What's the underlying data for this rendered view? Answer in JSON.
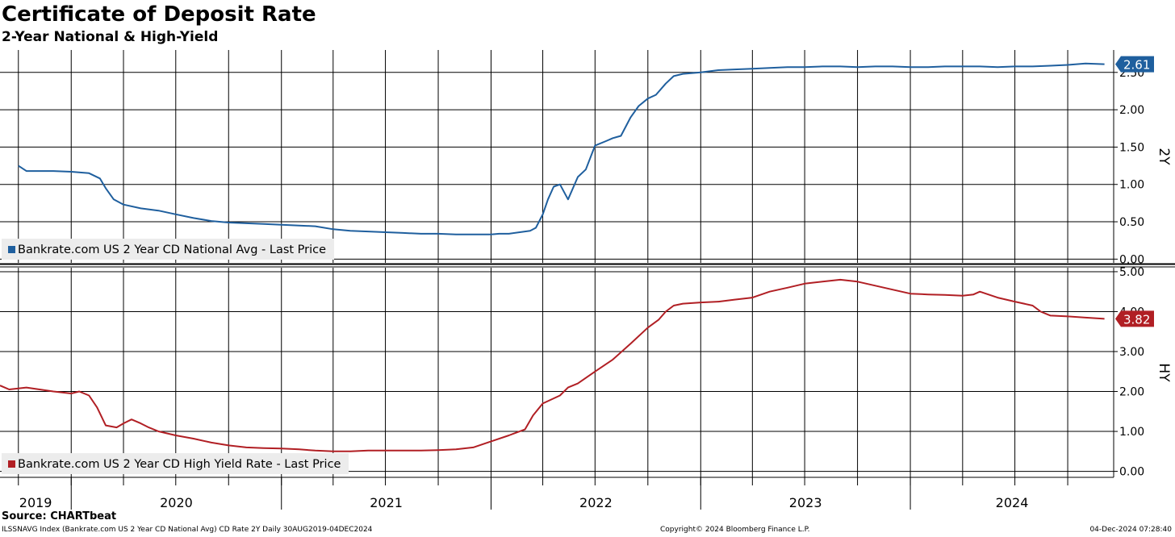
{
  "header": {
    "title": "Certificate of Deposit Rate",
    "subtitle": "2-Year National & High-Yield"
  },
  "footer": {
    "source": "Source: CHARTbeat",
    "index_line": "ILSSNAVG Index (Bankrate.com US 2 Year CD National Avg) CD Rate 2Y  Daily 30AUG2019-04DEC2024",
    "copyright": "Copyright© 2024 Bloomberg Finance L.P.",
    "timestamp": "04-Dec-2024 07:28:40"
  },
  "colors": {
    "national": "#1f5f9e",
    "high_yield": "#b11f24",
    "grid": "#000000"
  },
  "chart_data": [
    {
      "type": "line",
      "panel_label": "2Y",
      "legend": "Bankrate.com US 2 Year CD National Avg - Last Price",
      "legend_position": "bottom-left",
      "last_value_label": "2.61",
      "last_value": 2.61,
      "ylim": [
        -0.05,
        2.8
      ],
      "yticks": [
        0.0,
        0.5,
        1.0,
        1.5,
        2.0,
        2.5
      ],
      "ytick_labels": [
        "0.00",
        "0.50",
        "1.00",
        "1.50",
        "2.00",
        "2.50"
      ],
      "grid": true,
      "series": [
        {
          "color": "#1f5f9e",
          "x": [
            "2019-10-01",
            "2019-10-15",
            "2019-12-01",
            "2020-01-01",
            "2020-02-01",
            "2020-02-20",
            "2020-03-01",
            "2020-03-15",
            "2020-04-01",
            "2020-05-01",
            "2020-06-01",
            "2020-07-01",
            "2020-08-01",
            "2020-09-01",
            "2020-10-01",
            "2020-11-01",
            "2020-12-01",
            "2021-01-01",
            "2021-02-01",
            "2021-03-01",
            "2021-04-01",
            "2021-05-01",
            "2021-06-01",
            "2021-07-01",
            "2021-08-01",
            "2021-09-01",
            "2021-10-01",
            "2021-11-01",
            "2021-12-01",
            "2022-01-01",
            "2022-01-15",
            "2022-02-01",
            "2022-02-20",
            "2022-03-01",
            "2022-03-10",
            "2022-03-20",
            "2022-04-01",
            "2022-04-10",
            "2022-04-20",
            "2022-05-01",
            "2022-05-15",
            "2022-06-01",
            "2022-06-15",
            "2022-07-01",
            "2022-07-20",
            "2022-08-01",
            "2022-08-15",
            "2022-09-01",
            "2022-09-15",
            "2022-10-01",
            "2022-10-15",
            "2022-11-01",
            "2022-11-15",
            "2022-12-01",
            "2023-01-01",
            "2023-02-01",
            "2023-03-01",
            "2023-04-01",
            "2023-05-01",
            "2023-06-01",
            "2023-07-01",
            "2023-08-01",
            "2023-09-01",
            "2023-10-01",
            "2023-11-01",
            "2023-12-01",
            "2024-01-01",
            "2024-02-01",
            "2024-03-01",
            "2024-04-01",
            "2024-05-01",
            "2024-06-01",
            "2024-07-01",
            "2024-08-01",
            "2024-09-01",
            "2024-10-01",
            "2024-11-01",
            "2024-12-04"
          ],
          "y": [
            1.25,
            1.18,
            1.18,
            1.17,
            1.15,
            1.08,
            0.95,
            0.8,
            0.73,
            0.68,
            0.65,
            0.6,
            0.55,
            0.51,
            0.49,
            0.48,
            0.47,
            0.46,
            0.45,
            0.44,
            0.4,
            0.38,
            0.37,
            0.36,
            0.35,
            0.34,
            0.34,
            0.33,
            0.33,
            0.33,
            0.34,
            0.34,
            0.36,
            0.37,
            0.38,
            0.42,
            0.6,
            0.8,
            0.97,
            1.0,
            0.8,
            1.1,
            1.2,
            1.52,
            1.58,
            1.62,
            1.65,
            1.9,
            2.05,
            2.15,
            2.2,
            2.35,
            2.45,
            2.48,
            2.5,
            2.53,
            2.54,
            2.55,
            2.56,
            2.57,
            2.57,
            2.58,
            2.58,
            2.57,
            2.58,
            2.58,
            2.57,
            2.57,
            2.58,
            2.58,
            2.58,
            2.57,
            2.58,
            2.58,
            2.59,
            2.6,
            2.62,
            2.61
          ]
        }
      ]
    },
    {
      "type": "line",
      "panel_label": "HY",
      "legend": "Bankrate.com US 2 Year CD High Yield Rate - Last Price",
      "legend_position": "bottom-left",
      "last_value_label": "3.82",
      "last_value": 3.82,
      "ylim": [
        -0.15,
        5.1
      ],
      "yticks": [
        0.0,
        1.0,
        2.0,
        3.0,
        4.0,
        5.0
      ],
      "ytick_labels": [
        "0.00",
        "1.00",
        "2.00",
        "3.00",
        "4.00",
        "5.00"
      ],
      "grid": true,
      "series": [
        {
          "color": "#b11f24",
          "x": [
            "2019-08-30",
            "2019-09-15",
            "2019-10-15",
            "2019-12-01",
            "2020-01-01",
            "2020-01-15",
            "2020-02-01",
            "2020-02-15",
            "2020-03-01",
            "2020-03-20",
            "2020-04-01",
            "2020-04-15",
            "2020-05-01",
            "2020-05-15",
            "2020-06-01",
            "2020-07-01",
            "2020-08-01",
            "2020-09-01",
            "2020-10-01",
            "2020-11-01",
            "2020-12-01",
            "2021-01-01",
            "2021-02-01",
            "2021-03-01",
            "2021-04-01",
            "2021-05-01",
            "2021-06-01",
            "2021-07-01",
            "2021-08-01",
            "2021-09-01",
            "2021-10-01",
            "2021-11-01",
            "2021-12-01",
            "2022-01-01",
            "2022-02-01",
            "2022-03-01",
            "2022-03-15",
            "2022-04-01",
            "2022-05-01",
            "2022-05-15",
            "2022-06-01",
            "2022-07-01",
            "2022-08-01",
            "2022-09-01",
            "2022-10-01",
            "2022-10-20",
            "2022-11-01",
            "2022-11-15",
            "2022-12-01",
            "2023-01-01",
            "2023-02-01",
            "2023-03-01",
            "2023-04-01",
            "2023-05-01",
            "2023-06-01",
            "2023-07-01",
            "2023-08-01",
            "2023-09-01",
            "2023-10-01",
            "2023-11-01",
            "2023-12-01",
            "2024-01-01",
            "2024-02-01",
            "2024-03-01",
            "2024-04-01",
            "2024-04-20",
            "2024-05-01",
            "2024-06-01",
            "2024-07-01",
            "2024-08-01",
            "2024-08-15",
            "2024-09-01",
            "2024-10-01",
            "2024-11-01",
            "2024-12-04"
          ],
          "y": [
            2.15,
            2.05,
            2.1,
            2.0,
            1.95,
            2.0,
            1.9,
            1.6,
            1.15,
            1.1,
            1.2,
            1.3,
            1.2,
            1.1,
            1.0,
            0.9,
            0.82,
            0.72,
            0.65,
            0.6,
            0.58,
            0.57,
            0.55,
            0.52,
            0.5,
            0.5,
            0.52,
            0.52,
            0.52,
            0.52,
            0.53,
            0.55,
            0.6,
            0.75,
            0.9,
            1.05,
            1.4,
            1.7,
            1.9,
            2.1,
            2.2,
            2.5,
            2.8,
            3.2,
            3.6,
            3.8,
            4.0,
            4.15,
            4.2,
            4.23,
            4.25,
            4.3,
            4.35,
            4.5,
            4.6,
            4.7,
            4.75,
            4.8,
            4.75,
            4.65,
            4.55,
            4.45,
            4.43,
            4.42,
            4.4,
            4.43,
            4.5,
            4.35,
            4.25,
            4.15,
            4.0,
            3.9,
            3.88,
            3.85,
            3.82
          ]
        }
      ]
    }
  ],
  "x_axis": {
    "type": "time",
    "range": [
      "2019-08-30",
      "2024-12-20"
    ],
    "year_labels": [
      "2019",
      "2020",
      "2021",
      "2022",
      "2023",
      "2024"
    ]
  }
}
